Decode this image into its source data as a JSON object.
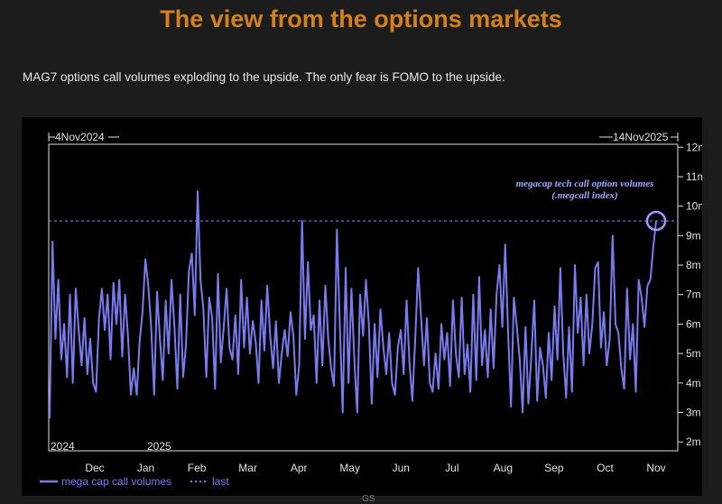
{
  "page": {
    "title": "The view from the options markets",
    "subtitle": "MAG7 options call volumes exploding to the upside. The only fear is FOMO to the upside.",
    "source": "GS"
  },
  "colors": {
    "title": "#d4801c",
    "series": "#7b7bf0",
    "axis": "#e0e0e0",
    "annotation": "#a8a8ff"
  },
  "chart_data": {
    "type": "line",
    "date_start": "4Nov2024",
    "date_end": "14Nov2025",
    "annotation_line1": "megacap tech call option volumes",
    "annotation_line2": "(.megcall index)",
    "year_labels": [
      "2024",
      "2025"
    ],
    "month_labels": [
      "Dec",
      "Jan",
      "Feb",
      "Mar",
      "Apr",
      "May",
      "Jun",
      "Jul",
      "Aug",
      "Sep",
      "Oct",
      "Nov"
    ],
    "y_tick_labels": [
      "2m",
      "3m",
      "4m",
      "5m",
      "6m",
      "7m",
      "8m",
      "9m",
      "10m",
      "11m",
      "12m"
    ],
    "y_tick_values": [
      2,
      3,
      4,
      5,
      6,
      7,
      8,
      9,
      10,
      11,
      12
    ],
    "ylim": [
      1.7,
      12.1
    ],
    "last_value": 9.5,
    "legend": [
      {
        "label": "mega cap call volumes",
        "style": "solid"
      },
      {
        "label": "last",
        "style": "dotted"
      }
    ],
    "ylabel": "",
    "xlabel": "",
    "series": [
      {
        "name": "mega cap call volumes",
        "values": [
          2.8,
          8.8,
          5.5,
          7.5,
          4.8,
          6.0,
          4.2,
          7.0,
          4.0,
          7.2,
          5.8,
          4.6,
          6.2,
          4.3,
          5.5,
          4.0,
          3.7,
          6.2,
          7.2,
          5.8,
          7.0,
          4.8,
          7.4,
          6.0,
          7.5,
          4.9,
          7.0,
          5.6,
          3.6,
          4.5,
          3.6,
          5.4,
          6.4,
          8.2,
          7.3,
          5.9,
          3.6,
          7.1,
          5.5,
          4.1,
          6.8,
          5.0,
          7.5,
          5.9,
          3.8,
          7.0,
          4.2,
          5.3,
          7.8,
          8.4,
          6.3,
          10.5,
          7.5,
          6.5,
          4.2,
          6.9,
          6.2,
          3.8,
          7.7,
          4.7,
          5.9,
          7.2,
          5.2,
          4.8,
          6.3,
          4.3,
          7.5,
          5.2,
          6.9,
          5.0,
          6.1,
          5.4,
          4.0,
          6.8,
          5.1,
          7.3,
          5.6,
          4.5,
          6.1,
          4.0,
          5.0,
          5.8,
          4.9,
          6.4,
          5.6,
          3.6,
          4.6,
          9.5,
          5.5,
          8.1,
          5.8,
          6.3,
          4.0,
          6.8,
          4.6,
          7.3,
          5.5,
          4.5,
          3.9,
          9.2,
          6.0,
          3.0,
          7.9,
          4.0,
          7.2,
          4.8,
          3.0,
          7.0,
          5.6,
          7.5,
          6.0,
          3.3,
          6.0,
          4.2,
          6.5,
          5.2,
          4.3,
          5.7,
          4.0,
          3.6,
          5.2,
          5.8,
          4.3,
          6.8,
          4.7,
          3.4,
          5.5,
          7.9,
          6.2,
          4.6,
          6.2,
          4.0,
          3.7,
          5.0,
          3.8,
          6.0,
          4.8,
          5.7,
          3.9,
          6.8,
          5.0,
          4.2,
          6.9,
          4.3,
          5.3,
          3.7,
          7.0,
          4.1,
          7.6,
          4.6,
          5.8,
          4.2,
          6.5,
          4.5,
          7.0,
          8.0,
          5.9,
          8.7,
          5.7,
          3.2,
          6.9,
          5.9,
          4.8,
          3.0,
          5.9,
          3.3,
          4.9,
          6.8,
          3.4,
          5.2,
          4.6,
          3.5,
          5.7,
          4.1,
          6.6,
          4.8,
          7.9,
          5.0,
          3.5,
          5.9,
          3.7,
          8.0,
          5.7,
          6.9,
          4.6,
          7.0,
          5.0,
          6.0,
          7.9,
          8.1,
          5.2,
          6.4,
          4.6,
          5.5,
          9.0,
          6.0,
          5.7,
          4.5,
          3.8,
          7.2,
          4.8,
          6.0,
          3.7,
          7.5,
          6.9,
          5.9,
          7.3,
          7.5,
          8.6,
          9.5
        ]
      }
    ]
  }
}
